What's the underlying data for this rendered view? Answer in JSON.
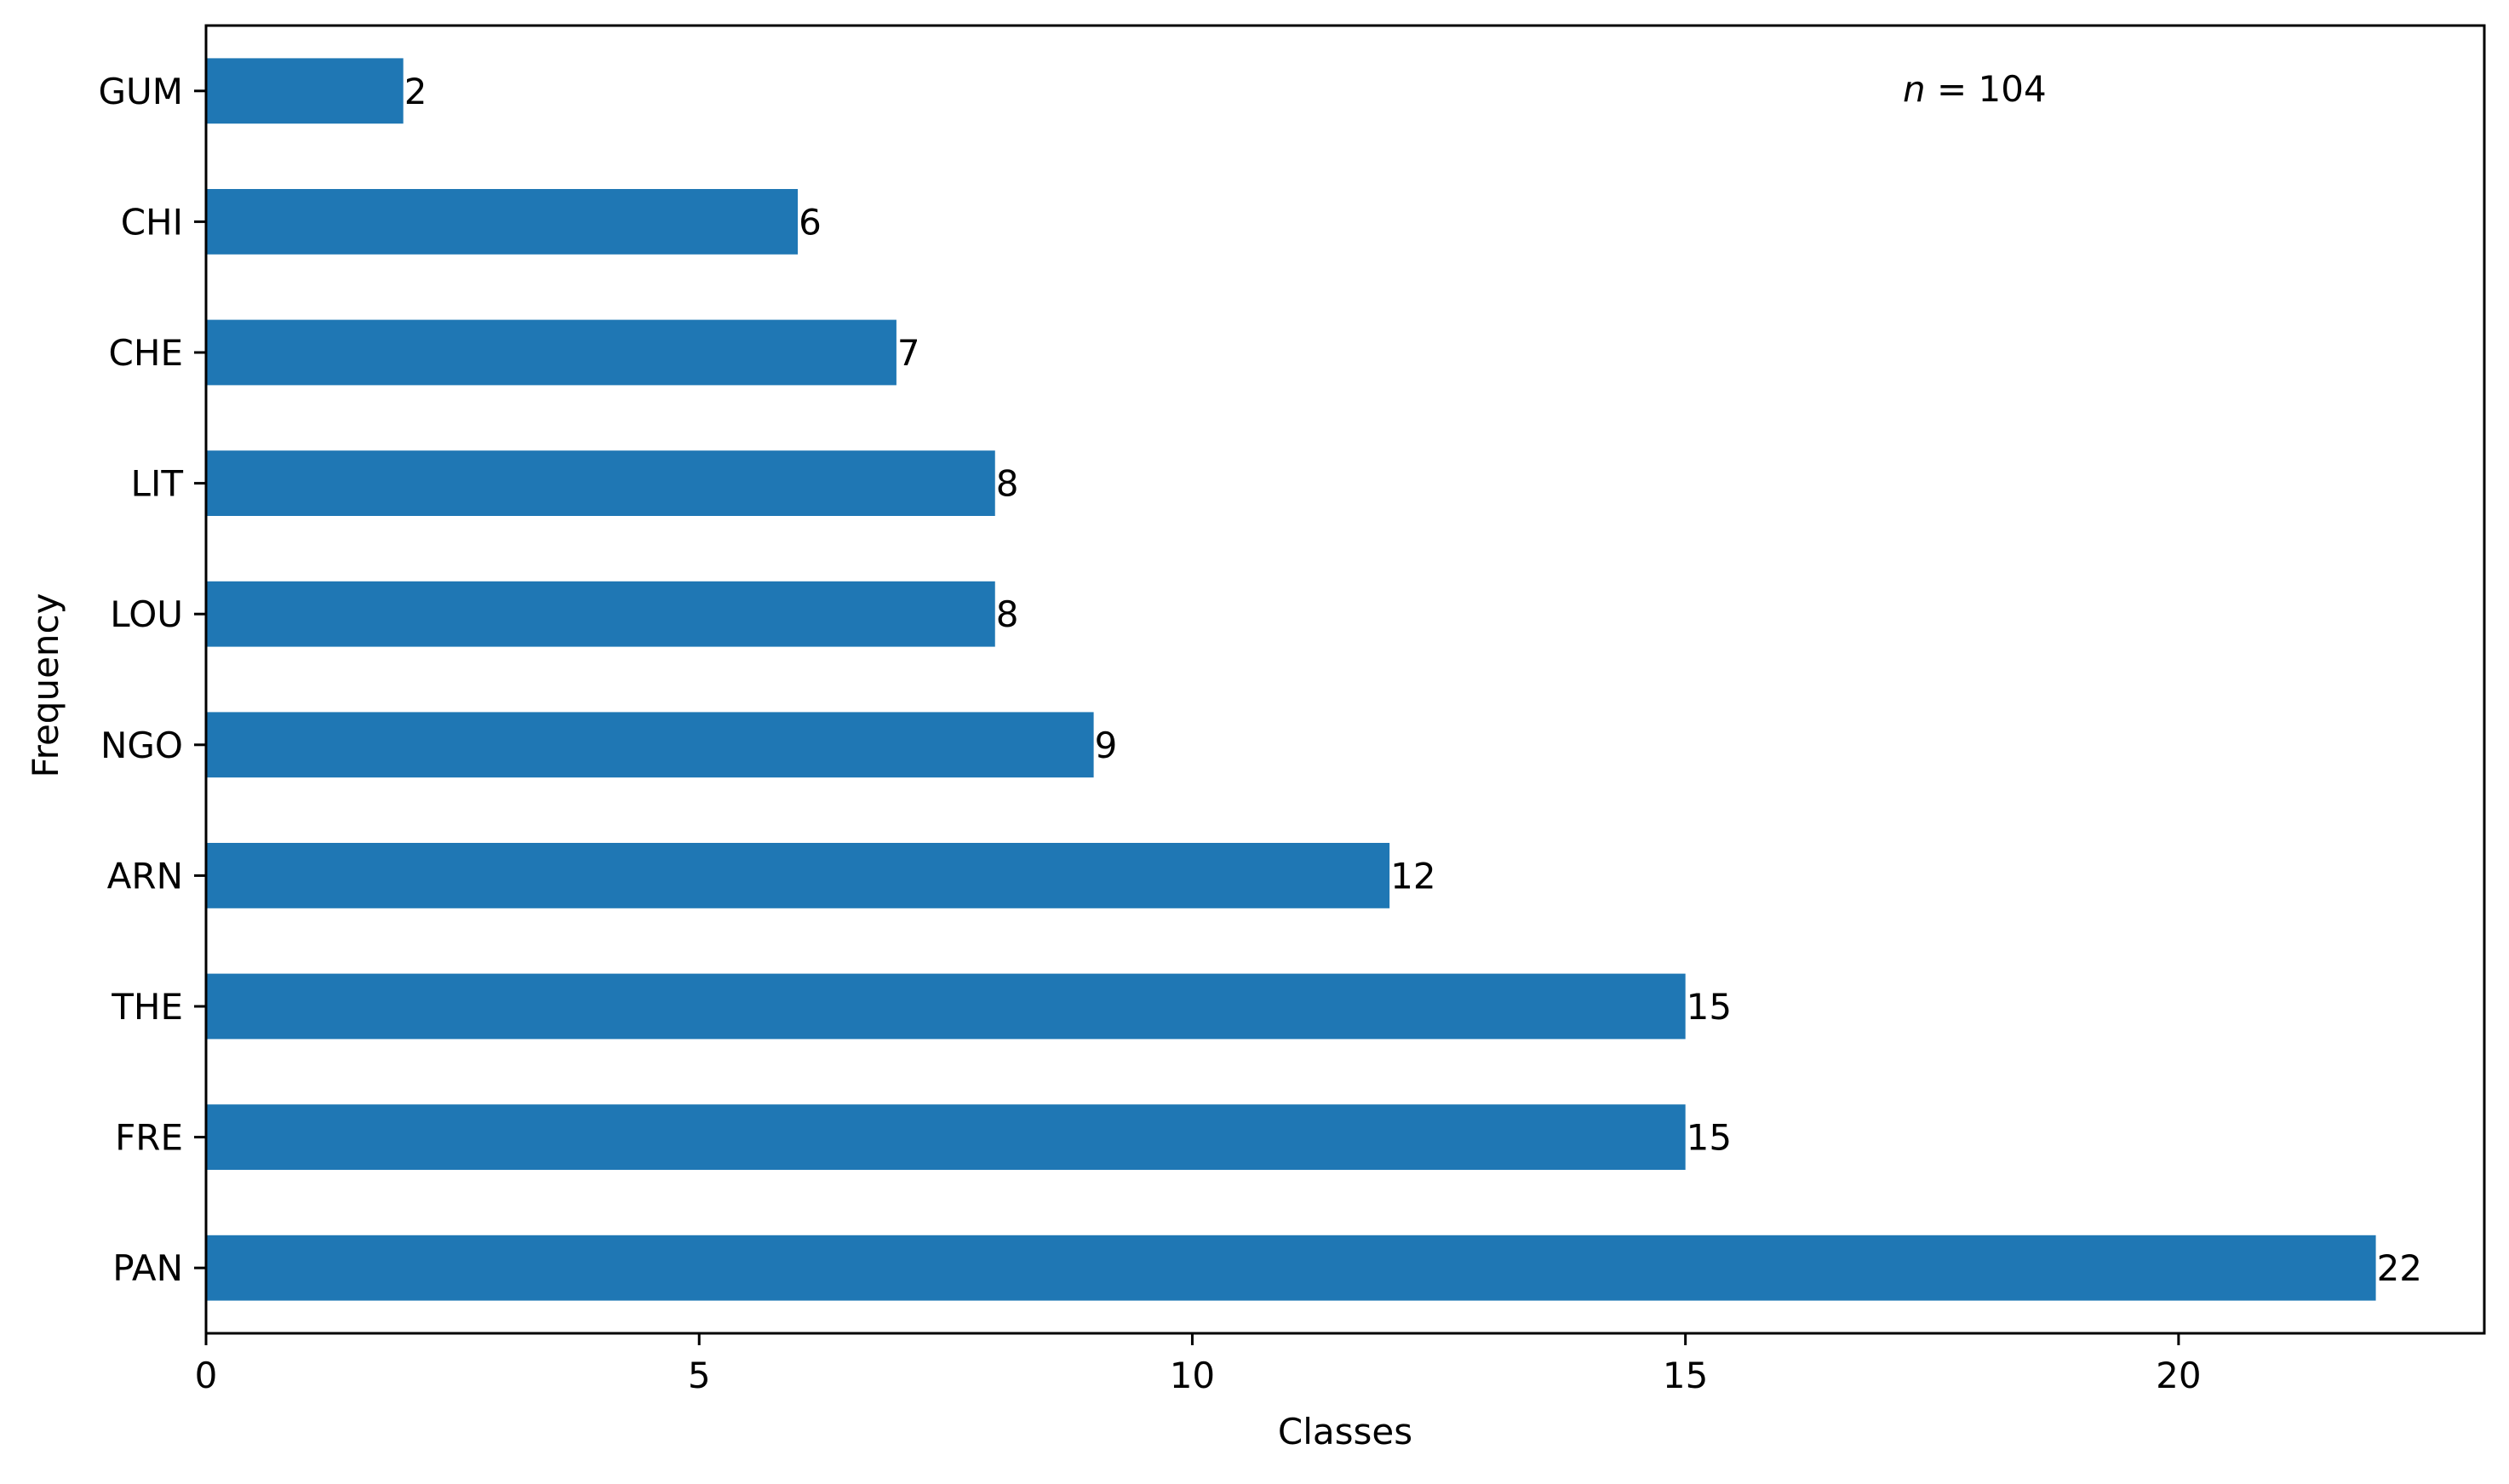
{
  "chart_data": {
    "type": "bar",
    "orientation": "horizontal",
    "categories": [
      "GUM",
      "CHI",
      "CHE",
      "LIT",
      "LOU",
      "NGO",
      "ARN",
      "THE",
      "FRE",
      "PAN"
    ],
    "values": [
      2,
      6,
      7,
      8,
      8,
      9,
      12,
      15,
      15,
      22
    ],
    "data_labels": [
      "2",
      "6",
      "7",
      "8",
      "8",
      "9",
      "12",
      "15",
      "15",
      "22"
    ],
    "title": "",
    "xlabel": "Classes",
    "ylabel": "Frequency",
    "xlim": [
      0,
      23.1
    ],
    "xticks": [
      0,
      5,
      10,
      15,
      20
    ],
    "xtick_labels": [
      "0",
      "5",
      "10",
      "15",
      "20"
    ],
    "annotation": {
      "var": "n",
      "eq": " = ",
      "num": "104"
    },
    "bar_color": "#1f77b4",
    "grid": false,
    "legend": "none"
  }
}
